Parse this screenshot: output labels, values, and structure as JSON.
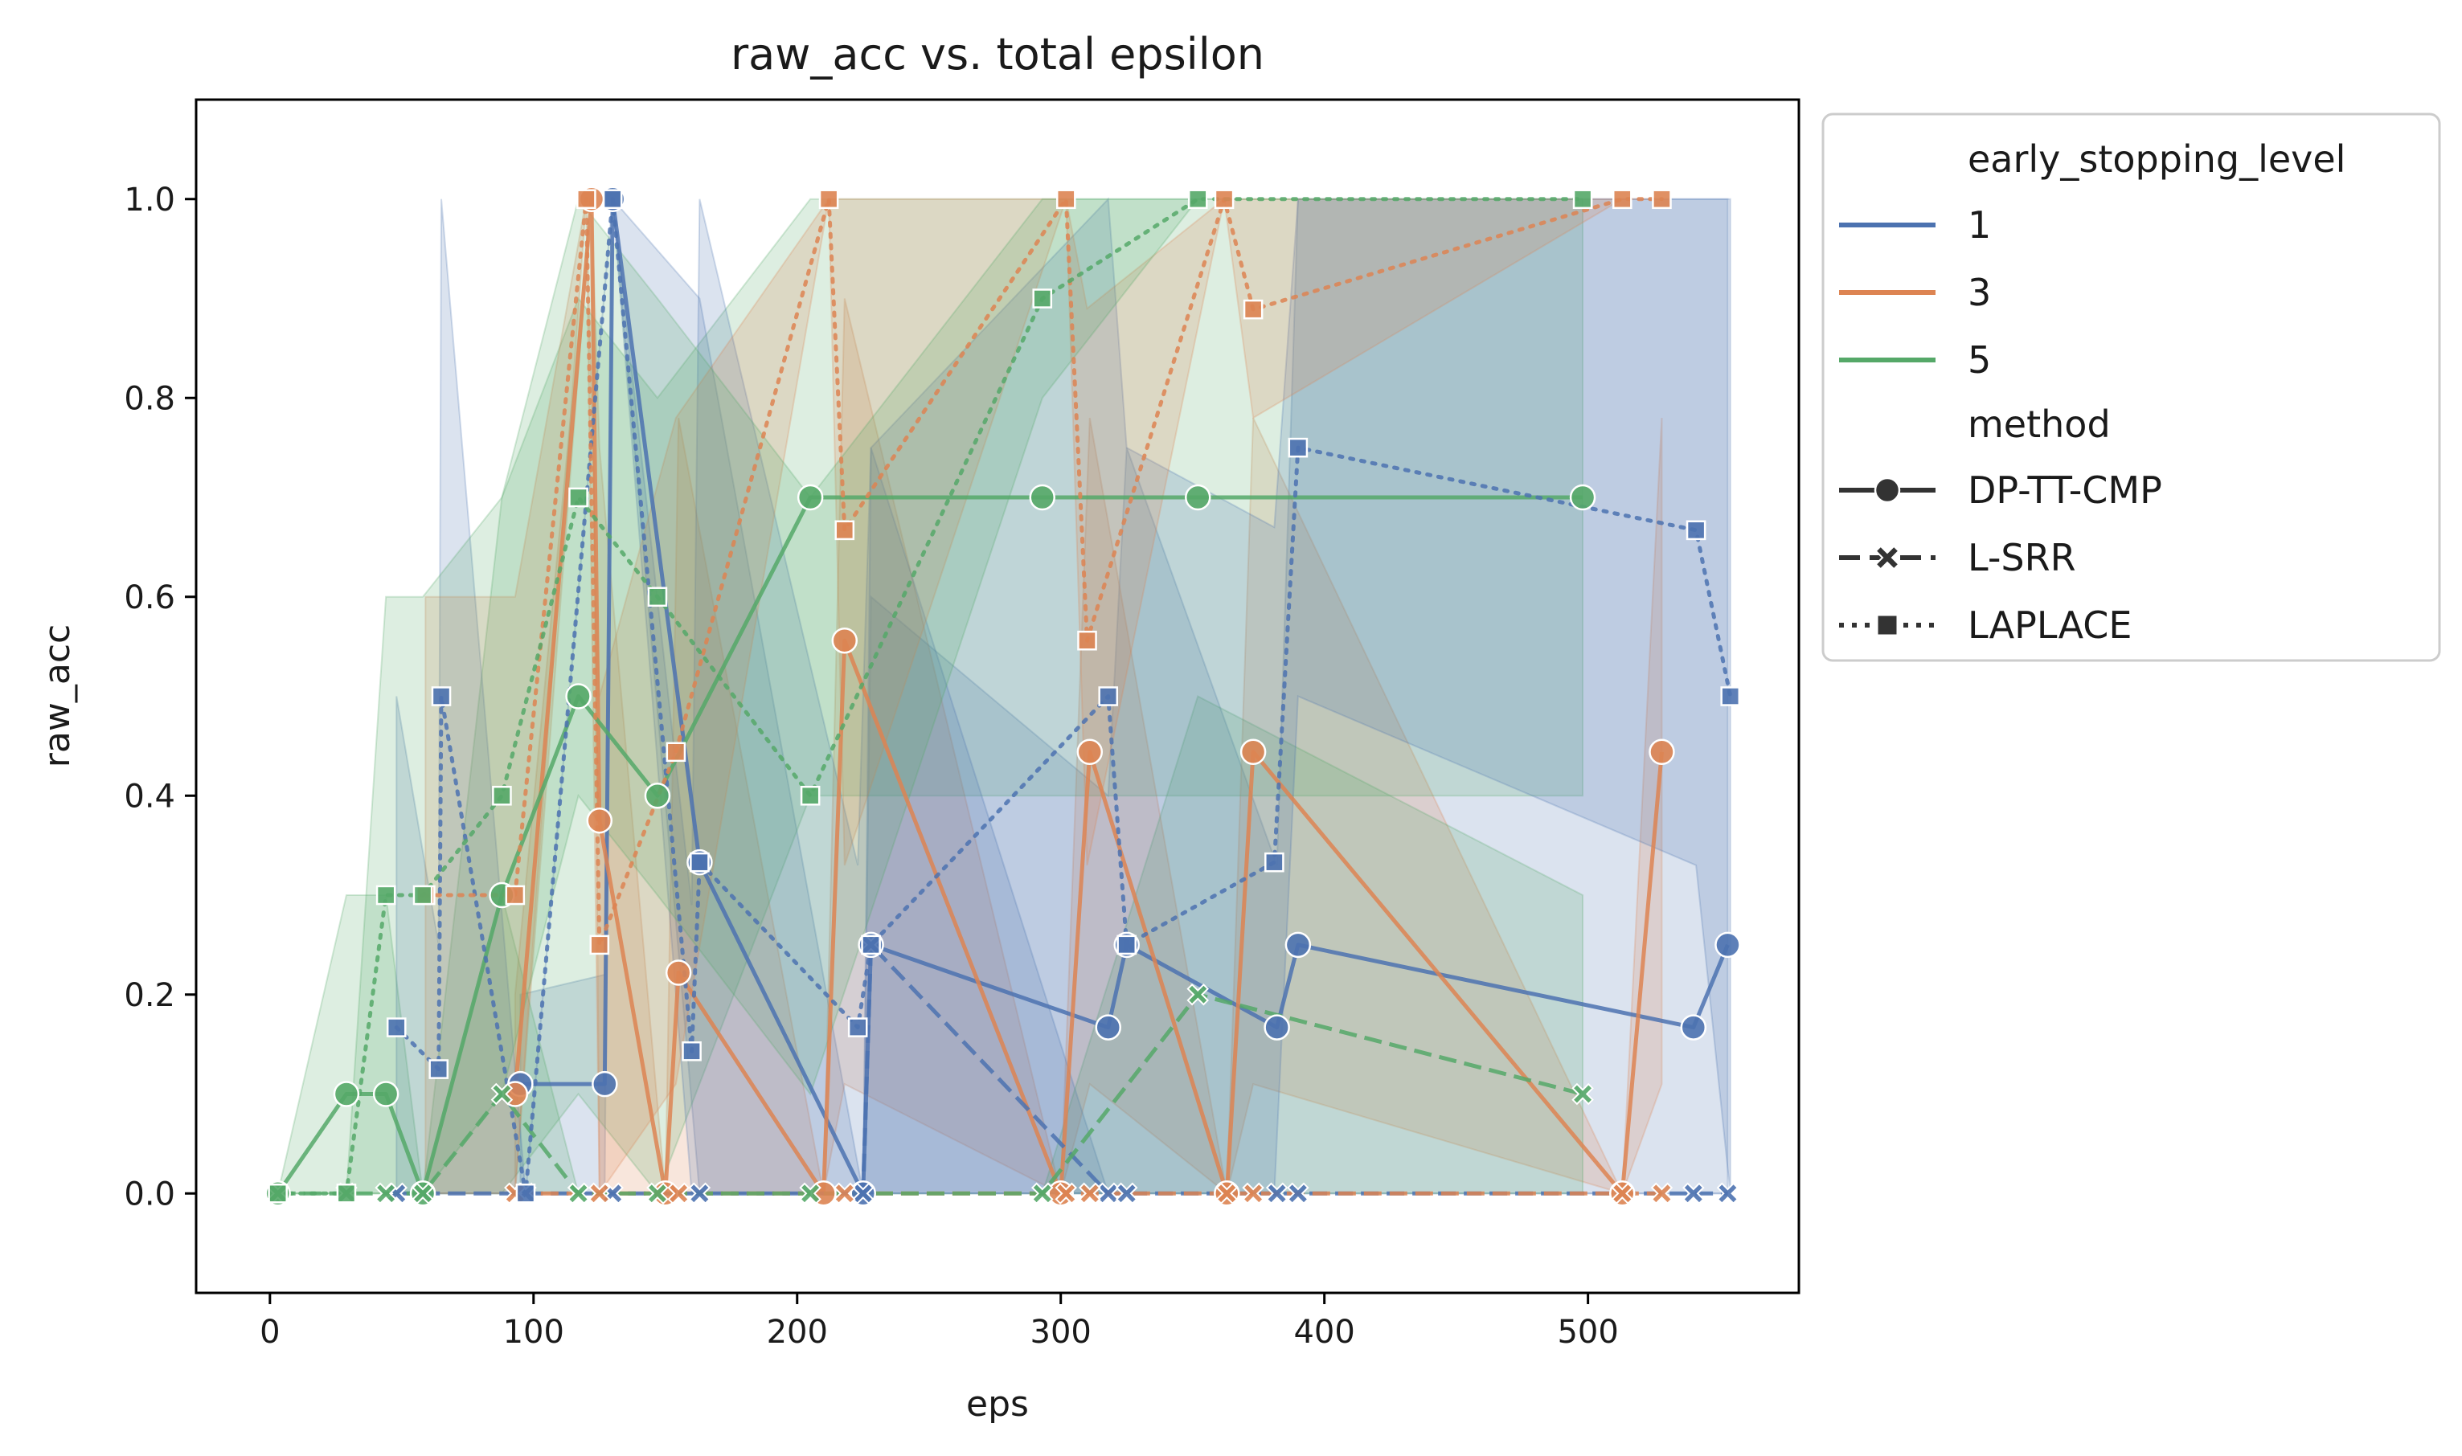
{
  "chart_data": {
    "type": "line",
    "title": "raw_acc vs. total epsilon",
    "xlabel": "eps",
    "ylabel": "raw_acc",
    "xlim": [
      -28,
      580
    ],
    "ylim": [
      -0.1,
      1.1
    ],
    "xticks": [
      0,
      100,
      200,
      300,
      400,
      500
    ],
    "xtick_labels": [
      "0",
      "100",
      "200",
      "300",
      "400",
      "500"
    ],
    "yticks": [
      0.0,
      0.2,
      0.4,
      0.6,
      0.8,
      1.0
    ],
    "ytick_labels": [
      "0.0",
      "0.2",
      "0.4",
      "0.6",
      "0.8",
      "1.0"
    ],
    "grid": false,
    "legend_position": "outside-right-top",
    "legend": {
      "hue_title": "early_stopping_level",
      "hue_entries": [
        {
          "label": "1",
          "color": "#4c72b0"
        },
        {
          "label": "3",
          "color": "#dd8452"
        },
        {
          "label": "5",
          "color": "#55a868"
        }
      ],
      "style_title": "method",
      "style_entries": [
        {
          "label": "DP-TT-CMP",
          "marker": "circle",
          "dash": "solid"
        },
        {
          "label": "L-SRR",
          "marker": "x",
          "dash": "dashed"
        },
        {
          "label": "LAPLACE",
          "marker": "square",
          "dash": "dotted"
        }
      ]
    },
    "series": [
      {
        "level": "1",
        "method": "DP-TT-CMP",
        "color": "#4c72b0",
        "points": [
          [
            95,
            0.11
          ],
          [
            127,
            0.11
          ],
          [
            130,
            1.0
          ],
          [
            163,
            0.333
          ],
          [
            225,
            0.0
          ],
          [
            228,
            0.25
          ],
          [
            318,
            0.167
          ],
          [
            325,
            0.25
          ],
          [
            382,
            0.167
          ],
          [
            390,
            0.25
          ],
          [
            540,
            0.167
          ],
          [
            553,
            0.25
          ]
        ],
        "band": [
          [
            95,
            0.0,
            0.2
          ],
          [
            127,
            0.0,
            0.22
          ],
          [
            130,
            1.0,
            1.0
          ],
          [
            163,
            0.0,
            0.9
          ],
          [
            225,
            0.0,
            0.0
          ],
          [
            228,
            0.0,
            0.6
          ],
          [
            318,
            0.0,
            0.4
          ],
          [
            325,
            0.0,
            0.75
          ],
          [
            382,
            0.0,
            0.33
          ],
          [
            390,
            0.0,
            1.0
          ],
          [
            540,
            0.0,
            1.0
          ],
          [
            553,
            0.0,
            1.0
          ]
        ]
      },
      {
        "level": "3",
        "method": "DP-TT-CMP",
        "color": "#dd8452",
        "points": [
          [
            93,
            0.1
          ],
          [
            122,
            1.0
          ],
          [
            125,
            0.375
          ],
          [
            150,
            0.0
          ],
          [
            155,
            0.222
          ],
          [
            210,
            0.0
          ],
          [
            218,
            0.556
          ],
          [
            300,
            0.0
          ],
          [
            311,
            0.444
          ],
          [
            363,
            0.0
          ],
          [
            373,
            0.444
          ],
          [
            513,
            0.0
          ],
          [
            528,
            0.444
          ]
        ],
        "band": [
          [
            93,
            0.0,
            0.2
          ],
          [
            122,
            1.0,
            1.0
          ],
          [
            125,
            0.0,
            0.75
          ],
          [
            150,
            0.0,
            0.0
          ],
          [
            155,
            0.0,
            0.78
          ],
          [
            210,
            0.0,
            0.0
          ],
          [
            218,
            0.11,
            0.9
          ],
          [
            300,
            0.0,
            0.0
          ],
          [
            311,
            0.11,
            0.78
          ],
          [
            363,
            0.0,
            0.0
          ],
          [
            373,
            0.11,
            0.78
          ],
          [
            513,
            0.0,
            0.0
          ],
          [
            528,
            0.11,
            0.78
          ]
        ]
      },
      {
        "level": "5",
        "method": "DP-TT-CMP",
        "color": "#55a868",
        "points": [
          [
            3,
            0.0
          ],
          [
            29,
            0.1
          ],
          [
            44,
            0.1
          ],
          [
            58,
            0.0
          ],
          [
            88,
            0.3
          ],
          [
            117,
            0.5
          ],
          [
            147,
            0.4
          ],
          [
            205,
            0.7
          ],
          [
            293,
            0.7
          ],
          [
            352,
            0.7
          ],
          [
            498,
            0.7
          ]
        ],
        "band": [
          [
            3,
            0.0,
            0.0
          ],
          [
            29,
            0.0,
            0.3
          ],
          [
            44,
            0.0,
            0.3
          ],
          [
            58,
            0.0,
            0.0
          ],
          [
            88,
            0.0,
            0.7
          ],
          [
            117,
            0.1,
            0.9
          ],
          [
            147,
            0.0,
            0.8
          ],
          [
            205,
            0.4,
            1.0
          ],
          [
            293,
            0.4,
            1.0
          ],
          [
            352,
            0.4,
            1.0
          ],
          [
            498,
            0.4,
            1.0
          ]
        ]
      },
      {
        "level": "1",
        "method": "L-SRR",
        "color": "#4c72b0",
        "points": [
          [
            48,
            0.0
          ],
          [
            97,
            0.0
          ],
          [
            130,
            0.0
          ],
          [
            163,
            0.0
          ],
          [
            225,
            0.0
          ],
          [
            228,
            0.25
          ],
          [
            318,
            0.0
          ],
          [
            325,
            0.0
          ],
          [
            382,
            0.0
          ],
          [
            390,
            0.0
          ],
          [
            540,
            0.0
          ],
          [
            553,
            0.0
          ]
        ],
        "band": [
          [
            48,
            0.0,
            0.0
          ],
          [
            97,
            0.0,
            0.0
          ],
          [
            130,
            0.0,
            0.0
          ],
          [
            163,
            0.0,
            0.0
          ],
          [
            225,
            0.0,
            0.0
          ],
          [
            228,
            0.0,
            0.75
          ],
          [
            318,
            0.0,
            0.0
          ],
          [
            325,
            0.0,
            0.0
          ],
          [
            382,
            0.0,
            0.0
          ],
          [
            390,
            0.0,
            0.0
          ],
          [
            540,
            0.0,
            0.0
          ],
          [
            553,
            0.0,
            0.0
          ]
        ]
      },
      {
        "level": "3",
        "method": "L-SRR",
        "color": "#dd8452",
        "points": [
          [
            93,
            0.0
          ],
          [
            125,
            0.0
          ],
          [
            155,
            0.0
          ],
          [
            218,
            0.0
          ],
          [
            302,
            0.0
          ],
          [
            311,
            0.0
          ],
          [
            363,
            0.0
          ],
          [
            373,
            0.0
          ],
          [
            513,
            0.0
          ],
          [
            528,
            0.0
          ]
        ],
        "band": []
      },
      {
        "level": "5",
        "method": "L-SRR",
        "color": "#55a868",
        "points": [
          [
            3,
            0.0
          ],
          [
            29,
            0.0
          ],
          [
            44,
            0.0
          ],
          [
            58,
            0.0
          ],
          [
            88,
            0.1
          ],
          [
            117,
            0.0
          ],
          [
            147,
            0.0
          ],
          [
            205,
            0.0
          ],
          [
            293,
            0.0
          ],
          [
            352,
            0.2
          ],
          [
            498,
            0.1
          ]
        ],
        "band": [
          [
            3,
            0.0,
            0.0
          ],
          [
            29,
            0.0,
            0.0
          ],
          [
            44,
            0.0,
            0.0
          ],
          [
            58,
            0.0,
            0.0
          ],
          [
            88,
            0.0,
            0.3
          ],
          [
            117,
            0.0,
            0.0
          ],
          [
            147,
            0.0,
            0.0
          ],
          [
            205,
            0.0,
            0.0
          ],
          [
            293,
            0.0,
            0.0
          ],
          [
            352,
            0.0,
            0.5
          ],
          [
            498,
            0.0,
            0.3
          ]
        ]
      },
      {
        "level": "1",
        "method": "LAPLACE",
        "color": "#4c72b0",
        "points": [
          [
            48,
            0.167
          ],
          [
            64,
            0.125
          ],
          [
            65,
            0.5
          ],
          [
            97,
            0.0
          ],
          [
            130,
            1.0
          ],
          [
            160,
            0.143
          ],
          [
            163,
            0.333
          ],
          [
            223,
            0.167
          ],
          [
            228,
            0.25
          ],
          [
            318,
            0.5
          ],
          [
            325,
            0.25
          ],
          [
            381,
            0.333
          ],
          [
            390,
            0.75
          ],
          [
            541,
            0.667
          ],
          [
            554,
            0.5
          ]
        ],
        "band": [
          [
            48,
            0.0,
            0.5
          ],
          [
            64,
            0.0,
            0.25
          ],
          [
            65,
            0.0,
            1.0
          ],
          [
            97,
            0.0,
            0.0
          ],
          [
            130,
            1.0,
            1.0
          ],
          [
            160,
            0.0,
            0.29
          ],
          [
            163,
            0.0,
            1.0
          ],
          [
            223,
            0.0,
            0.33
          ],
          [
            228,
            0.0,
            0.75
          ],
          [
            318,
            0.0,
            1.0
          ],
          [
            325,
            0.0,
            0.75
          ],
          [
            381,
            0.0,
            0.67
          ],
          [
            390,
            0.5,
            1.0
          ],
          [
            541,
            0.33,
            1.0
          ],
          [
            554,
            0.0,
            1.0
          ]
        ]
      },
      {
        "level": "3",
        "method": "LAPLACE",
        "color": "#dd8452",
        "points": [
          [
            59,
            0.3
          ],
          [
            93,
            0.3
          ],
          [
            120,
            1.0
          ],
          [
            125,
            0.25
          ],
          [
            154,
            0.444
          ],
          [
            212,
            1.0
          ],
          [
            218,
            0.667
          ],
          [
            302,
            1.0
          ],
          [
            310,
            0.556
          ],
          [
            362,
            1.0
          ],
          [
            373,
            0.889
          ],
          [
            513,
            1.0
          ],
          [
            528,
            1.0
          ]
        ],
        "band": [
          [
            59,
            0.0,
            0.6
          ],
          [
            93,
            0.0,
            0.6
          ],
          [
            120,
            1.0,
            1.0
          ],
          [
            125,
            0.0,
            0.5
          ],
          [
            154,
            0.11,
            0.78
          ],
          [
            212,
            1.0,
            1.0
          ],
          [
            218,
            0.33,
            1.0
          ],
          [
            302,
            1.0,
            1.0
          ],
          [
            310,
            0.33,
            0.89
          ],
          [
            362,
            1.0,
            1.0
          ],
          [
            373,
            0.78,
            1.0
          ],
          [
            513,
            1.0,
            1.0
          ],
          [
            528,
            1.0,
            1.0
          ]
        ]
      },
      {
        "level": "5",
        "method": "LAPLACE",
        "color": "#55a868",
        "points": [
          [
            3,
            0.0
          ],
          [
            29,
            0.0
          ],
          [
            44,
            0.3
          ],
          [
            58,
            0.3
          ],
          [
            88,
            0.4
          ],
          [
            117,
            0.7
          ],
          [
            147,
            0.6
          ],
          [
            205,
            0.4
          ],
          [
            293,
            0.9
          ],
          [
            352,
            1.0
          ],
          [
            498,
            1.0
          ]
        ],
        "band": [
          [
            3,
            0.0,
            0.0
          ],
          [
            29,
            0.0,
            0.0
          ],
          [
            44,
            0.0,
            0.6
          ],
          [
            58,
            0.0,
            0.6
          ],
          [
            88,
            0.1,
            0.7
          ],
          [
            117,
            0.4,
            1.0
          ],
          [
            147,
            0.3,
            0.9
          ],
          [
            205,
            0.1,
            0.7
          ],
          [
            293,
            0.8,
            1.0
          ],
          [
            352,
            1.0,
            1.0
          ],
          [
            498,
            1.0,
            1.0
          ]
        ]
      }
    ]
  }
}
